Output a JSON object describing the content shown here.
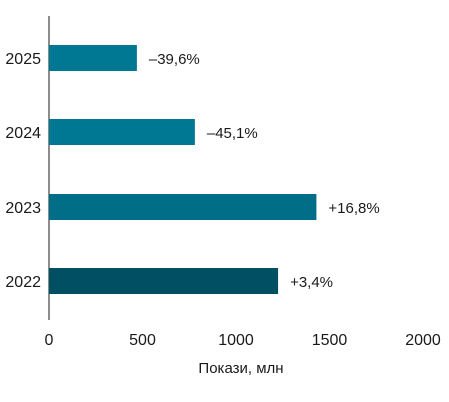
{
  "chart_data": {
    "type": "bar",
    "orientation": "horizontal",
    "categories": [
      "2025",
      "2024",
      "2023",
      "2022"
    ],
    "values": [
      470,
      780,
      1430,
      1225
    ],
    "data_labels": [
      "–39,6%",
      "–45,1%",
      "+16,8%",
      "+3,4%"
    ],
    "bar_colors": [
      "#007893",
      "#007893",
      "#006e87",
      "#004f62"
    ],
    "xlabel": "Покази, млн",
    "xlim": [
      0,
      2000
    ],
    "xticks": [
      0,
      500,
      1000,
      1500,
      2000
    ],
    "xtick_labels": [
      "0",
      "500",
      "1000",
      "1500",
      "2000"
    ],
    "grid": false
  }
}
